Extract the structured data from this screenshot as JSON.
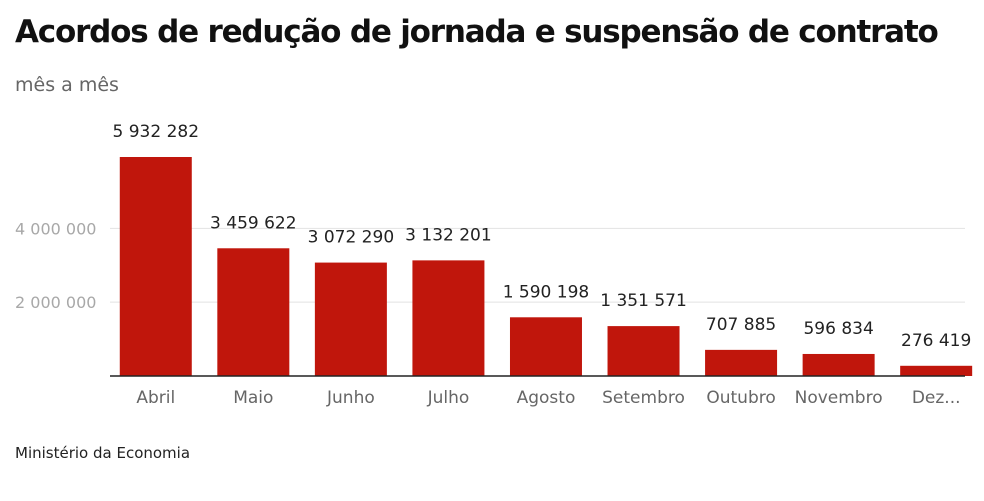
{
  "title": "Acordos de redução de jornada e suspensão de contrato",
  "subtitle": "mês a mês",
  "source": "Ministério da Economia",
  "colors": {
    "bar": "#c0160c",
    "grid": "#e2e2e2",
    "baseline": "#222222"
  },
  "chart_data": {
    "type": "bar",
    "title": "Acordos de redução de jornada e suspensão de contrato",
    "subtitle": "mês a mês",
    "categories": [
      "Abril",
      "Maio",
      "Junho",
      "Julho",
      "Agosto",
      "Setembro",
      "Outubro",
      "Novembro",
      "Dez..."
    ],
    "values": [
      5932282,
      3459622,
      3072290,
      3132201,
      1590198,
      1351571,
      707885,
      596834,
      276419
    ],
    "value_labels": [
      "5 932 282",
      "3 459 622",
      "3 072 290",
      "3 132 201",
      "1 590 198",
      "1 351 571",
      "707 885",
      "596 834",
      "276 419"
    ],
    "yticks": [
      2000000,
      4000000
    ],
    "ytick_labels": [
      "2 000 000",
      "4 000 000"
    ],
    "ylim": [
      0,
      6000000
    ],
    "grid": true,
    "legend": "none"
  }
}
